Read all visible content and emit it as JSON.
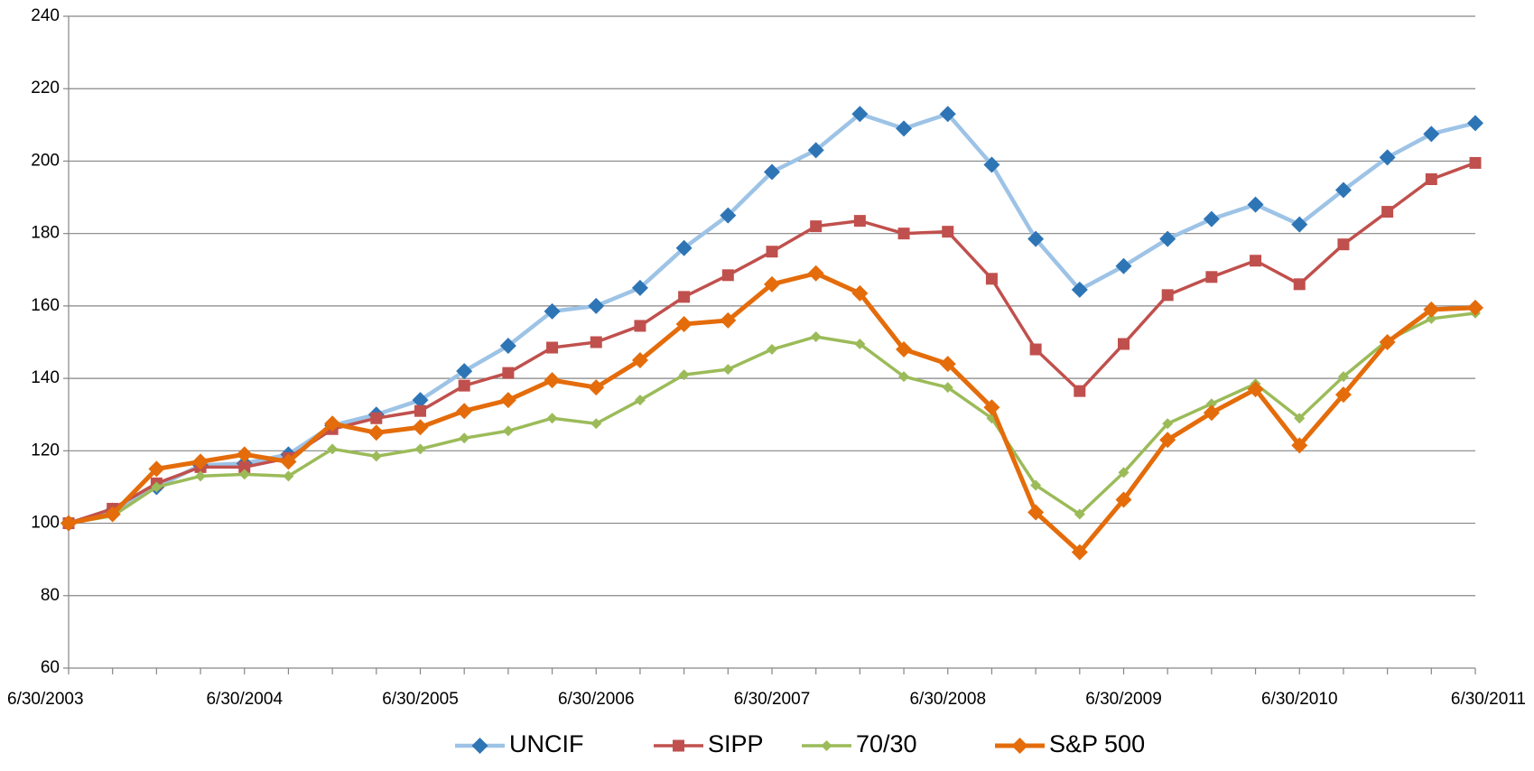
{
  "chart_data": {
    "type": "line",
    "categories": [
      "6/30/2003",
      null,
      null,
      null,
      "6/30/2004",
      null,
      null,
      null,
      "6/30/2005",
      null,
      null,
      null,
      "6/30/2006",
      null,
      null,
      null,
      "6/30/2007",
      null,
      null,
      null,
      "6/30/2008",
      null,
      null,
      null,
      "6/30/2009",
      null,
      null,
      null,
      "6/30/2010",
      null,
      null,
      null,
      "6/30/2011"
    ],
    "ylim": [
      60,
      240
    ],
    "yticks": [
      60,
      80,
      100,
      120,
      140,
      160,
      180,
      200,
      220,
      240
    ],
    "grid": true,
    "legend": "bottom",
    "series": [
      {
        "name": "UNCIF",
        "color": "#9dc3e6",
        "marker": "diamond",
        "marker_color": "#2e75b6",
        "values": [
          100,
          103.5,
          110,
          116,
          116.5,
          119,
          127,
          130,
          134,
          142,
          149,
          158.5,
          160,
          165,
          176,
          185,
          197,
          203,
          213,
          209,
          213,
          199,
          178.5,
          164.5,
          171,
          178.5,
          184,
          188,
          182.5,
          192,
          201,
          207.5,
          210.5
        ]
      },
      {
        "name": "SIPP",
        "color": "#c0504d",
        "marker": "square",
        "marker_color": "#c0504d",
        "values": [
          100,
          104,
          111,
          115.5,
          115.5,
          118,
          126,
          129,
          131,
          138,
          141.5,
          148.5,
          150,
          154.5,
          162.5,
          168.5,
          175,
          182,
          183.5,
          180,
          180.5,
          167.5,
          148,
          136.5,
          149.5,
          163,
          168,
          172.5,
          166,
          177,
          186,
          195,
          199.5
        ]
      },
      {
        "name": "70/30",
        "color": "#9bbb59",
        "marker": "small-diamond",
        "marker_color": "#9bbb59",
        "values": [
          100,
          102,
          110,
          113,
          113.5,
          113,
          120.5,
          118.5,
          120.5,
          123.5,
          125.5,
          129,
          127.5,
          134,
          141,
          142.5,
          148,
          151.5,
          149.5,
          140.5,
          137.5,
          129,
          110.5,
          102.5,
          114,
          127.5,
          133,
          138.5,
          129,
          140.5,
          150.5,
          156.5,
          158
        ]
      },
      {
        "name": "S&P 500",
        "color": "#e46c0a",
        "marker": "diamond",
        "marker_color": "#e46c0a",
        "values": [
          100,
          102.5,
          115,
          117,
          119,
          117,
          127.5,
          125,
          126.5,
          131,
          134,
          139.5,
          137.5,
          145,
          155,
          156,
          166,
          169,
          163.5,
          148,
          144,
          132,
          103,
          92,
          106.5,
          123,
          130.5,
          137,
          121.5,
          135.5,
          150,
          159,
          159.5
        ]
      }
    ]
  }
}
